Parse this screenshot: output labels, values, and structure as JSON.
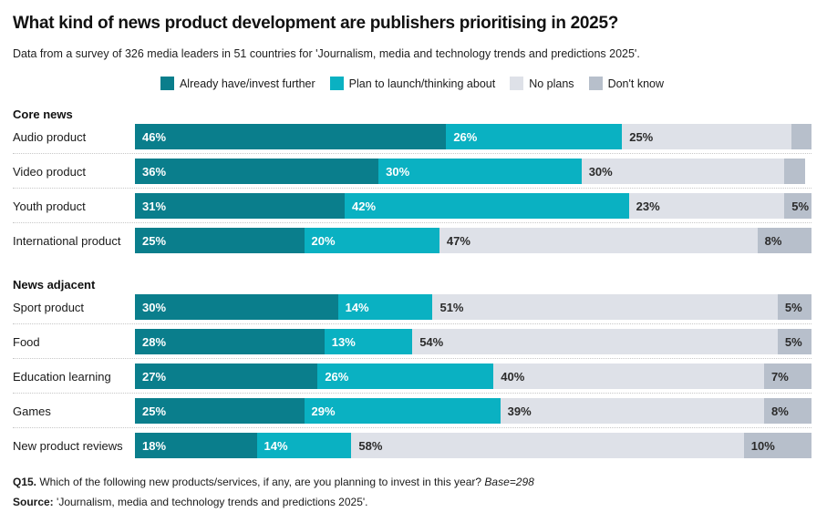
{
  "page": {
    "title": "What kind of news product development are publishers prioritising in 2025?",
    "subtitle": "Data from a survey of 326 media leaders in 51 countries for 'Journalism, media and technology trends and predictions 2025'.",
    "footnote": {
      "q_label": "Q15.",
      "q_text": "Which of the following new products/services, if any, are you planning to invest in this year?",
      "base": "Base=298",
      "source_label": "Source:",
      "source_text": "'Journalism, media and technology trends and predictions 2025'."
    }
  },
  "chart_data": {
    "type": "bar",
    "orientation": "horizontal",
    "stacked": true,
    "unit": "%",
    "xlim": [
      0,
      100
    ],
    "grid": false,
    "legend_position": "top-center",
    "series_names": [
      "Already have/invest further",
      "Plan to launch/thinking about",
      "No plans",
      "Don't know"
    ],
    "colors": [
      "#0a7e8c",
      "#0ab1c2",
      "#dee1e8",
      "#b7bfcb"
    ],
    "label_colors": [
      "#ffffff",
      "#ffffff",
      "#2b2b2b",
      "#2b2b2b"
    ],
    "groups": [
      {
        "name": "Core news",
        "rows": [
          {
            "label": "Audio product",
            "values": [
              46,
              26,
              25,
              3
            ],
            "value_labels": [
              "46%",
              "26%",
              "25%",
              ""
            ]
          },
          {
            "label": "Video product",
            "values": [
              36,
              30,
              30,
              3
            ],
            "value_labels": [
              "36%",
              "30%",
              "30%",
              ""
            ]
          },
          {
            "label": "Youth product",
            "values": [
              31,
              42,
              23,
              5
            ],
            "value_labels": [
              "31%",
              "42%",
              "23%",
              "5%"
            ]
          },
          {
            "label": "International product",
            "values": [
              25,
              20,
              47,
              8
            ],
            "value_labels": [
              "25%",
              "20%",
              "47%",
              "8%"
            ]
          }
        ]
      },
      {
        "name": "News adjacent",
        "rows": [
          {
            "label": "Sport product",
            "values": [
              30,
              14,
              51,
              5
            ],
            "value_labels": [
              "30%",
              "14%",
              "51%",
              "5%"
            ]
          },
          {
            "label": "Food",
            "values": [
              28,
              13,
              54,
              5
            ],
            "value_labels": [
              "28%",
              "13%",
              "54%",
              "5%"
            ]
          },
          {
            "label": "Education learning",
            "values": [
              27,
              26,
              40,
              7
            ],
            "value_labels": [
              "27%",
              "26%",
              "40%",
              "7%"
            ]
          },
          {
            "label": "Games",
            "values": [
              25,
              29,
              39,
              8
            ],
            "value_labels": [
              "25%",
              "29%",
              "39%",
              "8%"
            ]
          },
          {
            "label": "New product reviews",
            "values": [
              18,
              14,
              58,
              10
            ],
            "value_labels": [
              "18%",
              "14%",
              "58%",
              "10%"
            ]
          }
        ]
      }
    ]
  }
}
